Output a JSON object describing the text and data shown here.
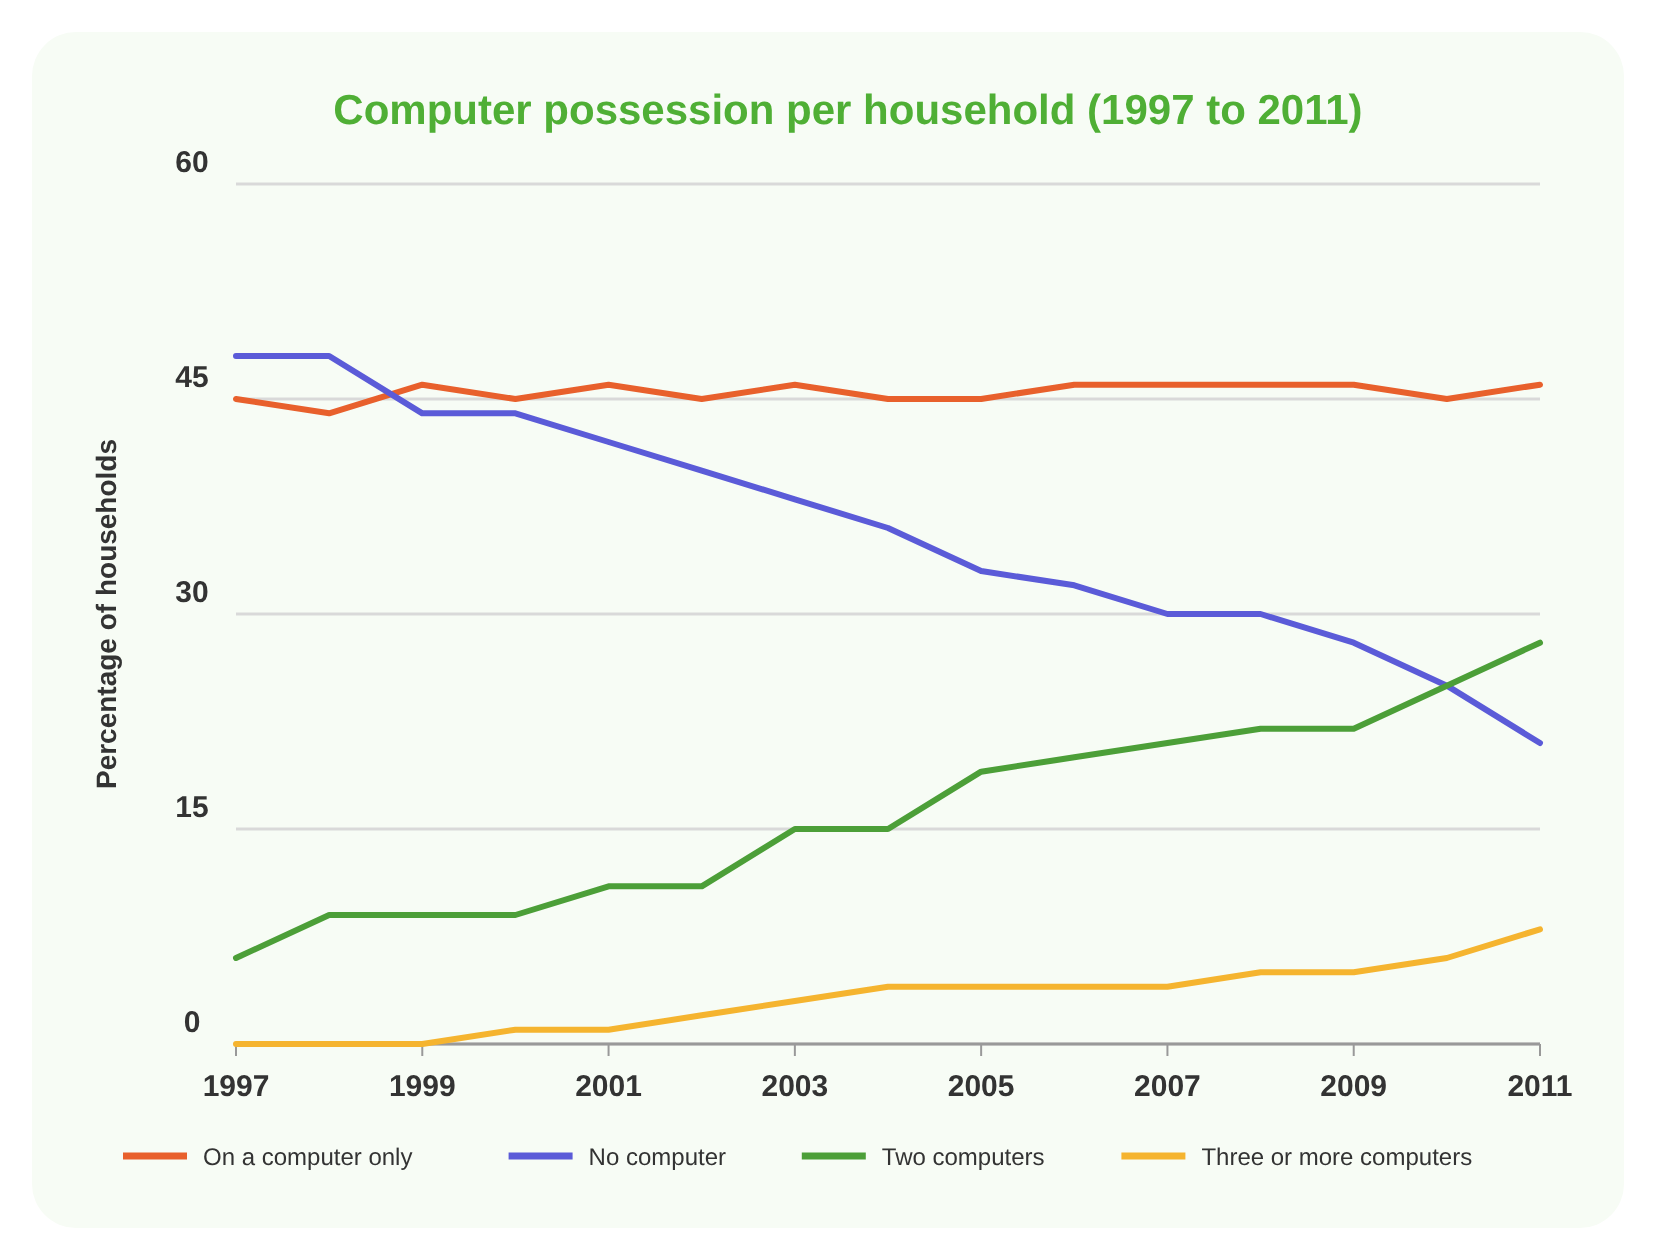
{
  "chart_data": {
    "type": "line",
    "title": "Computer possession per household (1997 to 2011)",
    "ylabel": "Percentage of households",
    "x": [
      1997,
      1998,
      1999,
      2000,
      2001,
      2002,
      2003,
      2004,
      2005,
      2006,
      2007,
      2008,
      2009,
      2010,
      2011
    ],
    "series": [
      {
        "name": "On a computer only",
        "color": "#e8602c",
        "values": [
          45,
          44,
          46,
          45,
          46,
          45,
          46,
          45,
          45,
          46,
          46,
          46,
          46,
          45,
          46
        ]
      },
      {
        "name": "No computer",
        "color": "#5b5bd8",
        "values": [
          48,
          48,
          44,
          44,
          42,
          40,
          38,
          36,
          33,
          32,
          30,
          30,
          28,
          25,
          21
        ]
      },
      {
        "name": "Two computers",
        "color": "#4c9f38",
        "values": [
          6,
          9,
          9,
          9,
          11,
          11,
          15,
          15,
          19,
          20,
          21,
          22,
          22,
          25,
          28
        ]
      },
      {
        "name": "Three or more computers",
        "color": "#f5b42f",
        "values": [
          0,
          0,
          0,
          1,
          1,
          2,
          3,
          4,
          4,
          4,
          4,
          5,
          5,
          6,
          8
        ]
      }
    ],
    "xlim": [
      1997,
      2011
    ],
    "xticks": [
      1997,
      1999,
      2001,
      2003,
      2005,
      2007,
      2009,
      2011
    ],
    "ylim": [
      0,
      60
    ],
    "yticks": [
      0,
      15,
      30,
      45,
      60
    ],
    "grid": "y",
    "legend": "bottom",
    "marker": "none",
    "line_style": "solid"
  }
}
